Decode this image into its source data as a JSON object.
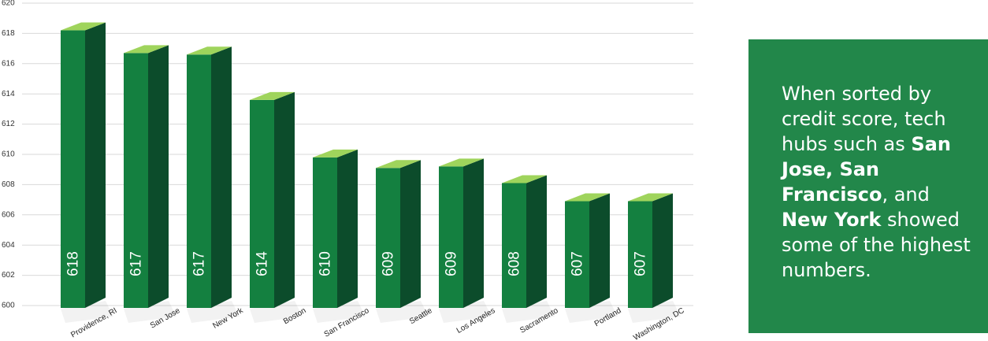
{
  "chart_data": {
    "type": "bar3d",
    "categories": [
      "Providence, RI",
      "San Jose",
      "New York",
      "Boston",
      "San Francisco",
      "Seattle",
      "Los Angeles",
      "Sacramento",
      "Portland",
      "Washington, DC"
    ],
    "values": [
      618.2,
      616.7,
      616.6,
      613.6,
      609.8,
      609.1,
      609.2,
      608.1,
      606.9,
      606.9
    ],
    "value_labels": [
      "618",
      "617",
      "617",
      "614",
      "610",
      "609",
      "609",
      "608",
      "607",
      "607"
    ],
    "color": "#148040",
    "ylim": [
      600,
      620
    ],
    "yticks": [
      600,
      602,
      604,
      606,
      608,
      610,
      612,
      614,
      616,
      618,
      620
    ],
    "grid": true
  },
  "panel": {
    "segments": [
      "When sorted by credit score, tech hubs such as ",
      "San Jose, San Francisco",
      ", and ",
      "New York",
      " showed some of the highest numbers."
    ]
  }
}
